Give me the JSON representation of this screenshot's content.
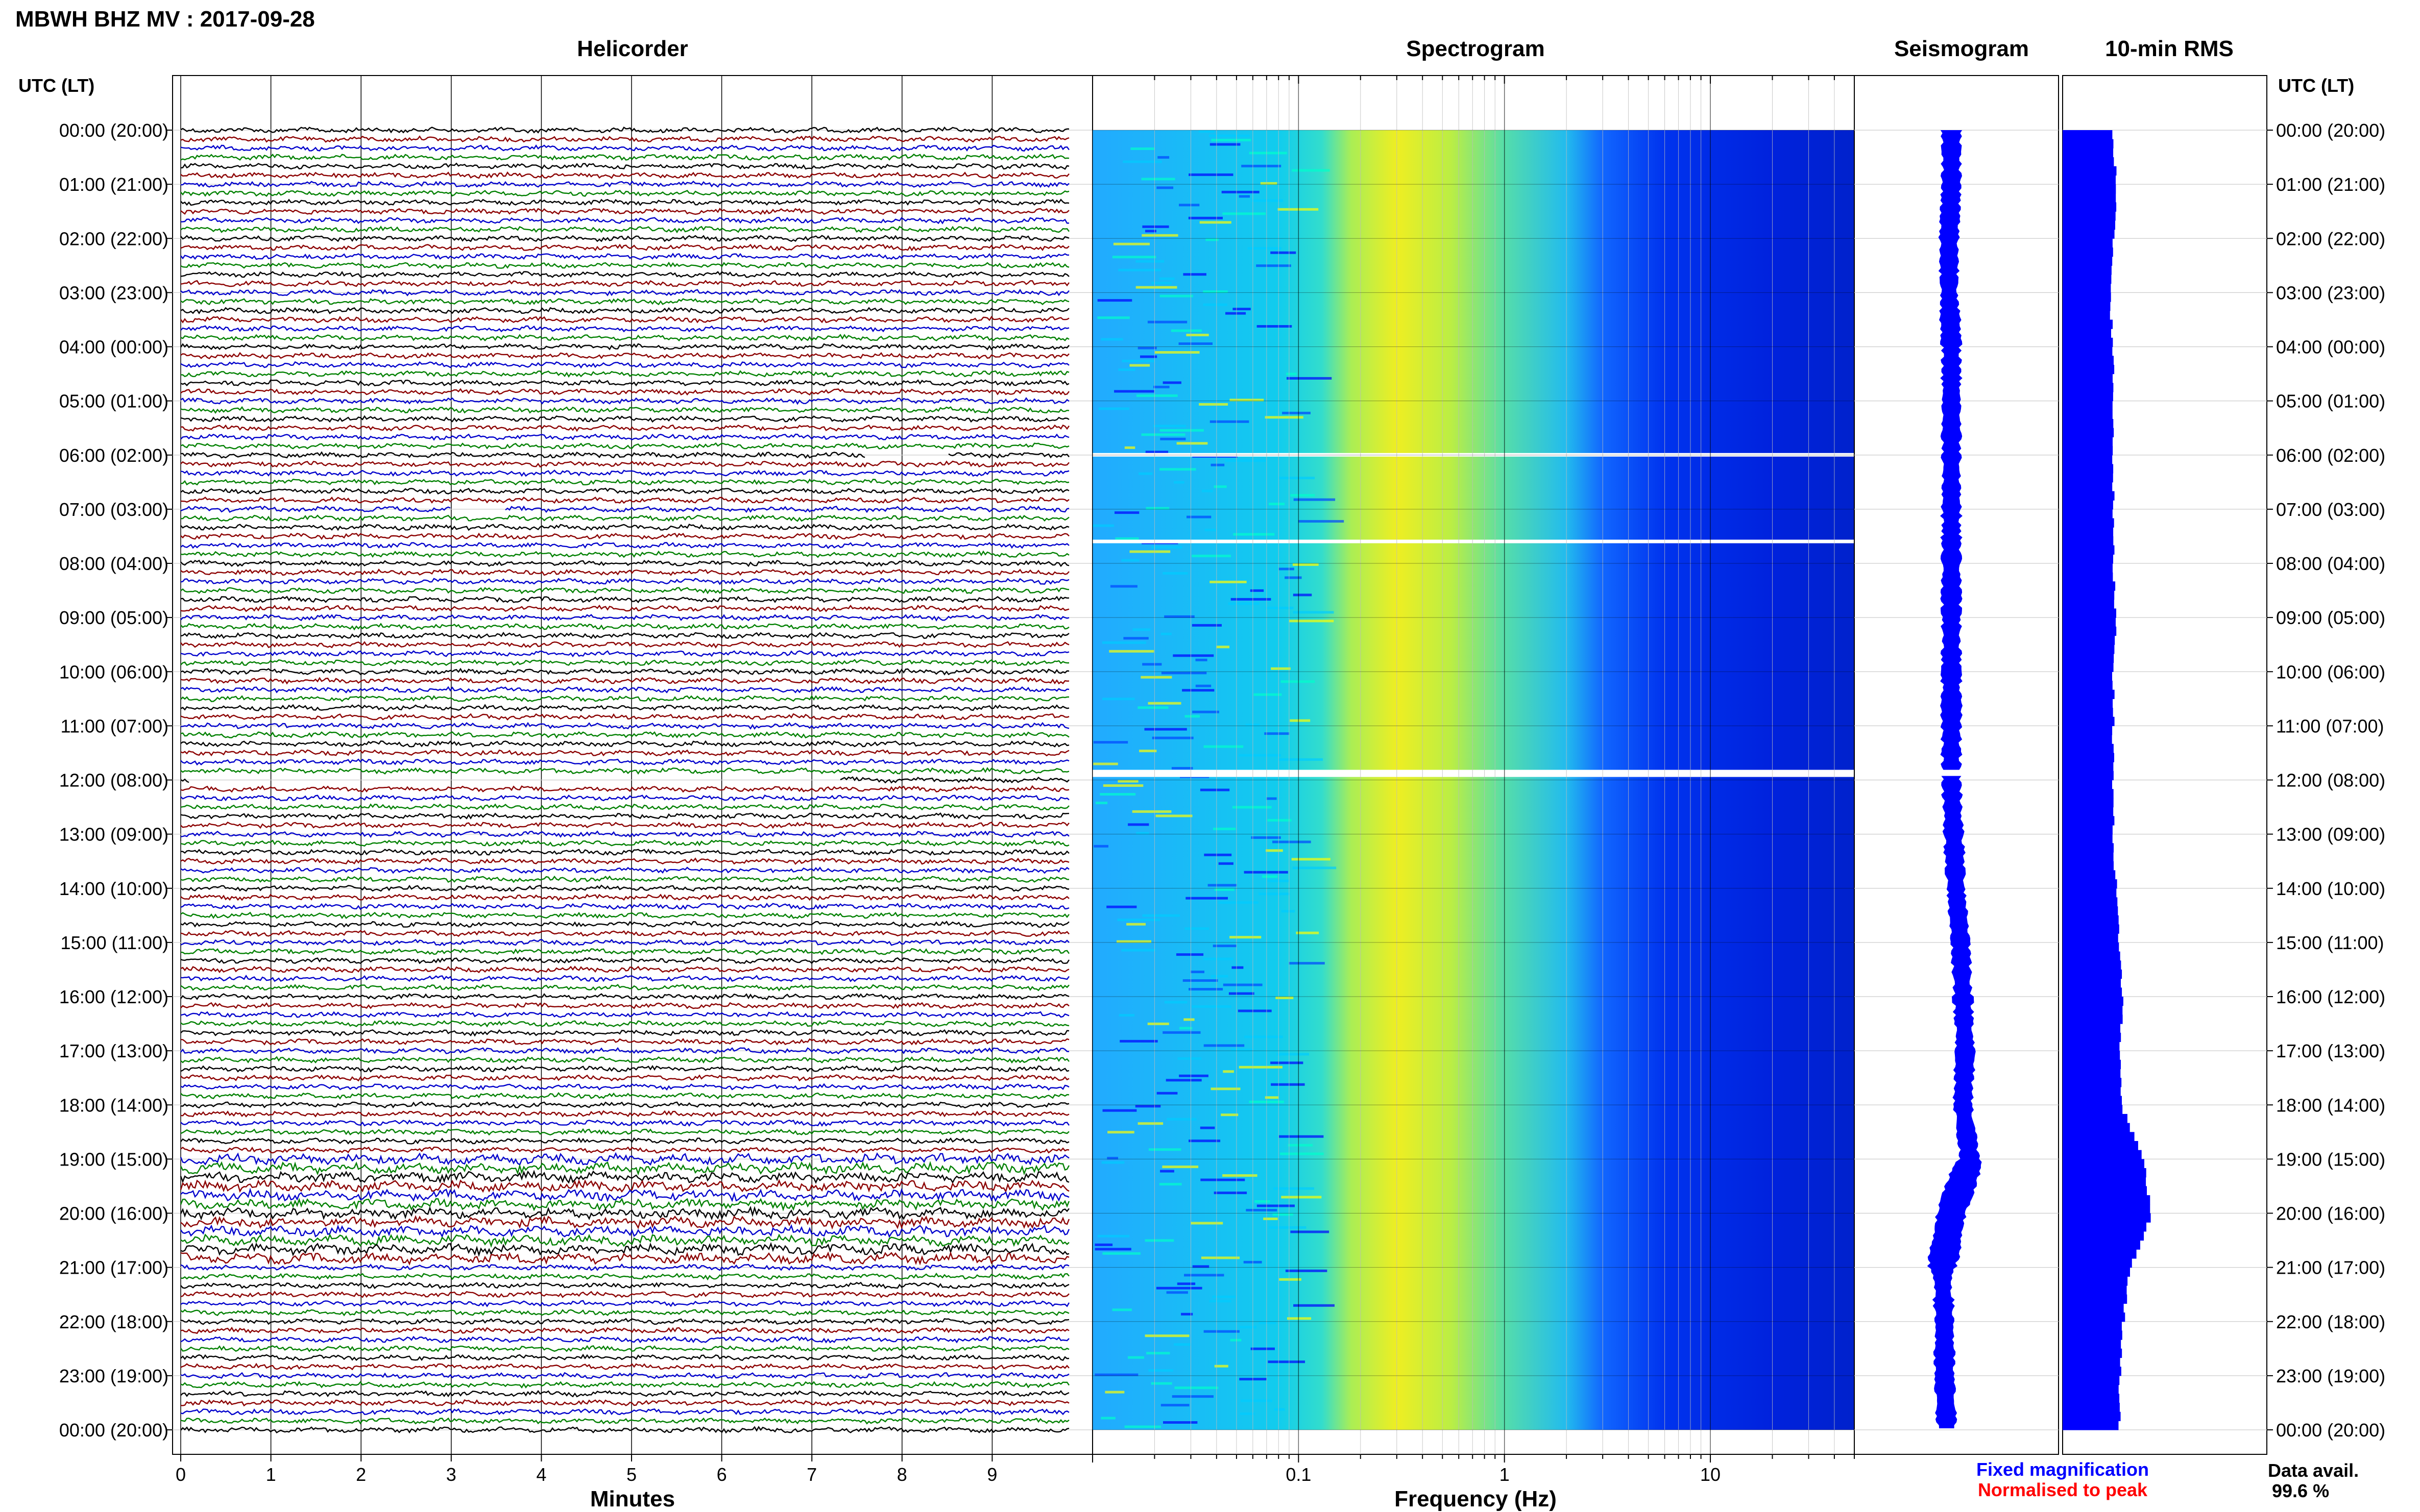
{
  "title": "MBWH BHZ MV : 2017-09-28",
  "time_header_left": "UTC (LT)",
  "time_header_right": "UTC (LT)",
  "time_labels": [
    "00:00 (20:00)",
    "01:00 (21:00)",
    "02:00 (22:00)",
    "03:00 (23:00)",
    "04:00 (00:00)",
    "05:00 (01:00)",
    "06:00 (02:00)",
    "07:00 (03:00)",
    "08:00 (04:00)",
    "09:00 (05:00)",
    "10:00 (06:00)",
    "11:00 (07:00)",
    "12:00 (08:00)",
    "13:00 (09:00)",
    "14:00 (10:00)",
    "15:00 (11:00)",
    "16:00 (12:00)",
    "17:00 (13:00)",
    "18:00 (14:00)",
    "19:00 (15:00)",
    "20:00 (16:00)",
    "21:00 (17:00)",
    "22:00 (18:00)",
    "23:00 (19:00)",
    "00:00 (20:00)"
  ],
  "legend": {
    "fixed": "Fixed magnification",
    "normalised": "Normalised to peak",
    "fixed_color": "#0000ff",
    "normalised_color": "#ff0000"
  },
  "data_avail": {
    "label": "Data avail.",
    "value": "99.6 %"
  },
  "chart_data": [
    {
      "type": "line",
      "title": "Helicorder",
      "xlabel": "Minutes",
      "x_ticks": [
        "0",
        "1",
        "2",
        "3",
        "4",
        "5",
        "6",
        "7",
        "8",
        "9"
      ],
      "xlim": [
        0,
        10
      ],
      "traces_per_hour": 6,
      "hours": 24,
      "trace_colors": [
        "#000000",
        "#8b0000",
        "#0000cc",
        "#008000"
      ],
      "noisy_hours": [
        19,
        20
      ],
      "gaps_minutes": [
        {
          "hour": 6,
          "start": 7.6,
          "end": 8.5
        },
        {
          "hour": 7,
          "start": 3.0,
          "end": 3.6
        },
        {
          "hour": 12,
          "start": 0.1,
          "end": 7.3
        }
      ]
    },
    {
      "type": "heatmap",
      "title": "Spectrogram",
      "xlabel": "Frequency (Hz)",
      "x_scale": "log",
      "x_ticks": [
        "0.1",
        "1",
        "10"
      ],
      "xlim": [
        0.01,
        50
      ],
      "colormap": [
        "#0000ff",
        "#00ffff",
        "#ffff00"
      ],
      "note_bands": "low power below 0.13 Hz, peak power 0.2-0.6 Hz, falling off above 3 Hz",
      "gap_hours": [
        6.0,
        7.6,
        11.85
      ]
    },
    {
      "type": "line",
      "title": "Seismogram",
      "color": "#0000ff",
      "offset_by_hour": [
        0,
        0,
        -1,
        -1,
        0,
        0,
        0,
        0,
        0,
        0,
        0,
        0,
        0,
        1,
        2,
        4,
        5,
        6,
        5,
        8,
        0,
        -4,
        -3,
        -3,
        -2
      ]
    },
    {
      "type": "bar",
      "title": "10-min RMS",
      "color": "#0000ff",
      "orientation": "horizontal",
      "rms_by_hour": [
        1.6,
        1.7,
        1.6,
        1.5,
        1.6,
        1.6,
        1.6,
        1.6,
        1.6,
        1.7,
        1.6,
        1.6,
        1.6,
        1.6,
        1.7,
        1.8,
        1.9,
        1.8,
        1.9,
        2.6,
        2.8,
        2.1,
        1.9,
        1.8,
        1.8
      ]
    }
  ]
}
